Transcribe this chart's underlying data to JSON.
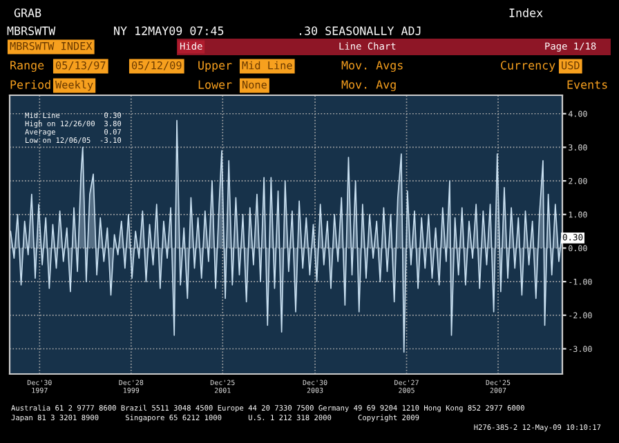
{
  "chart_data": {
    "type": "area",
    "title": "MBRSWTW INDEX",
    "x": [
      "1997-05-13",
      "1997-06-10",
      "1997-07-08",
      "1997-08-05",
      "1997-09-02",
      "1997-09-30",
      "1997-10-28",
      "1997-11-25",
      "1997-12-23",
      "1998-01-20",
      "1998-02-17",
      "1998-03-17",
      "1998-04-14",
      "1998-05-12",
      "1998-06-09",
      "1998-07-07",
      "1998-08-04",
      "1998-09-01",
      "1998-09-29",
      "1998-10-27",
      "1998-11-24",
      "1998-12-08",
      "1999-01-05",
      "1999-02-02",
      "1999-03-02",
      "1999-03-30",
      "1999-04-27",
      "1999-05-25",
      "1999-06-22",
      "1999-07-20",
      "1999-08-17",
      "1999-09-14",
      "1999-10-12",
      "1999-11-09",
      "1999-12-07",
      "2000-01-04",
      "2000-02-01",
      "2000-02-29",
      "2000-03-28",
      "2000-04-25",
      "2000-05-23",
      "2000-06-20",
      "2000-07-18",
      "2000-08-15",
      "2000-09-12",
      "2000-10-10",
      "2000-11-07",
      "2000-12-05",
      "2000-12-26",
      "2001-01-23",
      "2001-02-20",
      "2001-03-20",
      "2001-04-17",
      "2001-05-15",
      "2001-06-12",
      "2001-07-10",
      "2001-08-07",
      "2001-09-04",
      "2001-10-02",
      "2001-10-30",
      "2001-11-27",
      "2001-12-18",
      "2002-01-15",
      "2002-02-12",
      "2002-03-12",
      "2002-04-09",
      "2002-05-07",
      "2002-06-04",
      "2002-07-02",
      "2002-07-30",
      "2002-08-27",
      "2002-09-24",
      "2002-10-22",
      "2002-11-19",
      "2002-12-17",
      "2003-01-14",
      "2003-02-11",
      "2003-03-11",
      "2003-04-08",
      "2003-05-06",
      "2003-06-03",
      "2003-07-01",
      "2003-07-29",
      "2003-08-26",
      "2003-09-23",
      "2003-10-21",
      "2003-11-18",
      "2003-12-16",
      "2004-01-13",
      "2004-02-10",
      "2004-03-09",
      "2004-04-06",
      "2004-05-04",
      "2004-06-01",
      "2004-06-29",
      "2004-07-27",
      "2004-08-24",
      "2004-09-21",
      "2004-10-19",
      "2004-11-16",
      "2004-12-14",
      "2005-01-11",
      "2005-02-08",
      "2005-03-08",
      "2005-04-05",
      "2005-05-03",
      "2005-05-31",
      "2005-06-28",
      "2005-07-26",
      "2005-08-23",
      "2005-09-20",
      "2005-10-18",
      "2005-11-15",
      "2005-12-06",
      "2006-01-03",
      "2006-01-31",
      "2006-02-28",
      "2006-03-28",
      "2006-04-25",
      "2006-05-23",
      "2006-06-20",
      "2006-07-18",
      "2006-08-15",
      "2006-09-12",
      "2006-10-10",
      "2006-11-07",
      "2006-12-05",
      "2006-12-19",
      "2007-01-16",
      "2007-02-13",
      "2007-03-13",
      "2007-04-10",
      "2007-05-08",
      "2007-06-05",
      "2007-07-03",
      "2007-07-31",
      "2007-08-28",
      "2007-09-25",
      "2007-10-23",
      "2007-11-20",
      "2007-12-18",
      "2008-01-15",
      "2008-02-12",
      "2008-03-11",
      "2008-04-08",
      "2008-05-06",
      "2008-06-03",
      "2008-07-01",
      "2008-07-29",
      "2008-08-26",
      "2008-09-23",
      "2008-10-21",
      "2008-11-18",
      "2008-12-16",
      "2008-12-30",
      "2009-01-27",
      "2009-02-24",
      "2009-03-24",
      "2009-04-21",
      "2009-05-12"
    ],
    "series": [
      {
        "color": "#c8dff0",
        "values": [
          0.5,
          -0.3,
          1.0,
          -1.1,
          0.8,
          -0.2,
          1.6,
          -0.9,
          1.3,
          -0.5,
          0.9,
          -1.2,
          0.7,
          -0.6,
          1.1,
          -0.4,
          0.6,
          -1.3,
          1.2,
          -0.7,
          2.2,
          3.0,
          -1.0,
          1.6,
          2.2,
          -0.8,
          0.9,
          -0.4,
          0.6,
          -1.4,
          0.4,
          -0.2,
          0.8,
          -0.6,
          1.0,
          -0.9,
          0.5,
          -0.3,
          1.1,
          -1.0,
          0.7,
          -0.5,
          1.3,
          -1.2,
          0.8,
          -0.3,
          1.2,
          -2.6,
          3.8,
          -1.1,
          0.6,
          -1.5,
          1.5,
          -0.6,
          0.9,
          -0.9,
          1.1,
          -0.4,
          2.0,
          -1.2,
          1.3,
          2.9,
          -1.5,
          2.6,
          -1.1,
          1.5,
          -0.8,
          1.0,
          -1.6,
          1.2,
          -0.5,
          1.6,
          -1.0,
          2.1,
          -2.3,
          2.1,
          -1.2,
          1.7,
          -2.5,
          2.0,
          -0.7,
          1.1,
          -1.9,
          1.4,
          -0.6,
          0.9,
          -0.8,
          0.7,
          -1.0,
          1.3,
          -0.5,
          0.8,
          -1.2,
          1.0,
          -0.4,
          1.5,
          -1.7,
          2.7,
          -0.8,
          2.0,
          -1.9,
          1.3,
          -0.9,
          1.0,
          -0.3,
          0.8,
          -1.0,
          1.2,
          -0.7,
          1.0,
          -1.6,
          1.5,
          2.8,
          -3.1,
          1.7,
          -0.5,
          1.1,
          -1.2,
          0.9,
          -0.6,
          1.0,
          -0.9,
          0.6,
          -1.1,
          1.2,
          -0.4,
          2.0,
          -2.6,
          0.9,
          -0.8,
          1.2,
          -1.1,
          0.8,
          -0.3,
          1.3,
          -1.2,
          1.1,
          -0.5,
          1.3,
          -1.9,
          2.8,
          -1.3,
          1.8,
          -0.9,
          1.2,
          -0.6,
          0.9,
          -1.4,
          1.1,
          -0.5,
          0.8,
          -1.5,
          1.0,
          2.6,
          -2.3,
          1.6,
          -0.8,
          1.3,
          -0.4,
          0.3
        ]
      }
    ],
    "xlim": [
      "1997-05-06",
      "2009-05-19"
    ],
    "xticks": [
      {
        "value": "1997-12-30",
        "label": "Dec'30\n1997"
      },
      {
        "value": "1999-12-28",
        "label": "Dec'28\n1999"
      },
      {
        "value": "2001-12-25",
        "label": "Dec'25\n2001"
      },
      {
        "value": "2003-12-30",
        "label": "Dec'30\n2003"
      },
      {
        "value": "2005-12-27",
        "label": "Dec'27\n2005"
      },
      {
        "value": "2007-12-25",
        "label": "Dec'25\n2007"
      }
    ],
    "ylim": [
      -3.75,
      4.55
    ],
    "yticks": [
      {
        "value": -3,
        "label": "-3.00"
      },
      {
        "value": -2,
        "label": "-2.00"
      },
      {
        "value": -1,
        "label": "-1.00"
      },
      {
        "value": 0,
        "label": "0.00"
      },
      {
        "value": 1,
        "label": "1.00"
      },
      {
        "value": 2,
        "label": "2.00"
      },
      {
        "value": 3,
        "label": "3.00"
      },
      {
        "value": 4,
        "label": "4.00"
      }
    ],
    "grid": true,
    "legend": false,
    "annotations": [
      "GRAB",
      "MBRSWTW",
      "NY 12MAY09 07:45",
      ".30 SEASONALLY ADJ",
      "Index",
      "Hide",
      "Line Chart",
      "Page 1/18",
      "Range",
      "05/13/97",
      "05/12/09",
      "Upper",
      "Mid Line",
      "Mov. Avgs",
      "Currency",
      "USD",
      "Period",
      "Weekly",
      "Lower",
      "None",
      "Mov. Avg",
      "Events",
      "Mid Line          0.30",
      "High on 12/26/00  3.80",
      "Average           0.07",
      "Low on 12/06/05  -3.10",
      "Australia 61 2 9777 8600 Brazil 5511 3048 4500 Europe 44 20 7330 7500 Germany 49 69 9204 1210 Hong Kong 852 2977 6000",
      "Japan 81 3 3201 8900      Singapore 65 6212 1000      U.S. 1 212 318 2000      Copyright 2009",
      "H276-385-2 12-May-09 10:10:17",
      {
        "text": "0.30",
        "x": "2009-05-12",
        "y": 0.3
      }
    ]
  }
}
